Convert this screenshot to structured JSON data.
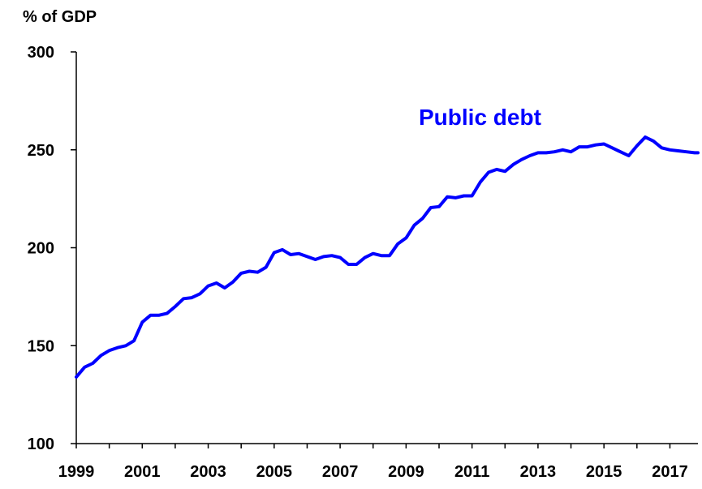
{
  "chart_data": {
    "type": "line",
    "ylabel": "% of GDP",
    "ylim": [
      100,
      300
    ],
    "yticks": [
      100,
      150,
      200,
      250,
      300
    ],
    "xlim": [
      1999.0,
      2017.85
    ],
    "xtick_labels": [
      "1999",
      "2001",
      "2003",
      "2005",
      "2007",
      "2009",
      "2011",
      "2013",
      "2015",
      "2017"
    ],
    "grid": false,
    "series": [
      {
        "name": "Public debt",
        "color": "#0000ff",
        "x": [
          1999.0,
          1999.25,
          1999.5,
          1999.75,
          2000.0,
          2000.25,
          2000.5,
          2000.75,
          2001.0,
          2001.25,
          2001.5,
          2001.75,
          2002.0,
          2002.25,
          2002.5,
          2002.75,
          2003.0,
          2003.25,
          2003.5,
          2003.75,
          2004.0,
          2004.25,
          2004.5,
          2004.75,
          2005.0,
          2005.25,
          2005.5,
          2005.75,
          2006.0,
          2006.25,
          2006.5,
          2006.75,
          2007.0,
          2007.25,
          2007.5,
          2007.75,
          2008.0,
          2008.25,
          2008.5,
          2008.75,
          2009.0,
          2009.25,
          2009.5,
          2009.75,
          2010.0,
          2010.25,
          2010.5,
          2010.75,
          2011.0,
          2011.25,
          2011.5,
          2011.75,
          2012.0,
          2012.25,
          2012.5,
          2012.75,
          2013.0,
          2013.25,
          2013.5,
          2013.75,
          2014.0,
          2014.25,
          2014.5,
          2014.75,
          2015.0,
          2015.25,
          2015.5,
          2015.75,
          2016.0,
          2016.25,
          2016.5,
          2016.75,
          2017.0,
          2017.25,
          2017.5,
          2017.75,
          2017.85
        ],
        "values": [
          134,
          139,
          141,
          145,
          147.5,
          149,
          150,
          152.5,
          162,
          165.5,
          165.5,
          166.5,
          170,
          174,
          174.5,
          176.5,
          180.5,
          182,
          179.5,
          182.5,
          187,
          188,
          187.5,
          190,
          197.5,
          199,
          196.5,
          197,
          195.5,
          194,
          195.5,
          196,
          195,
          191.5,
          191.5,
          195,
          197,
          196,
          196,
          202,
          205,
          211.5,
          215,
          220.5,
          221,
          226,
          225.5,
          226.5,
          226.5,
          233.5,
          238.5,
          240,
          239,
          242.5,
          245,
          247,
          248.5,
          248.5,
          249,
          250,
          249,
          251.5,
          251.5,
          252.5,
          253,
          251,
          249,
          247,
          252,
          256.5,
          254.5,
          251,
          250,
          249.5,
          249,
          248.5,
          248.5
        ]
      }
    ]
  }
}
